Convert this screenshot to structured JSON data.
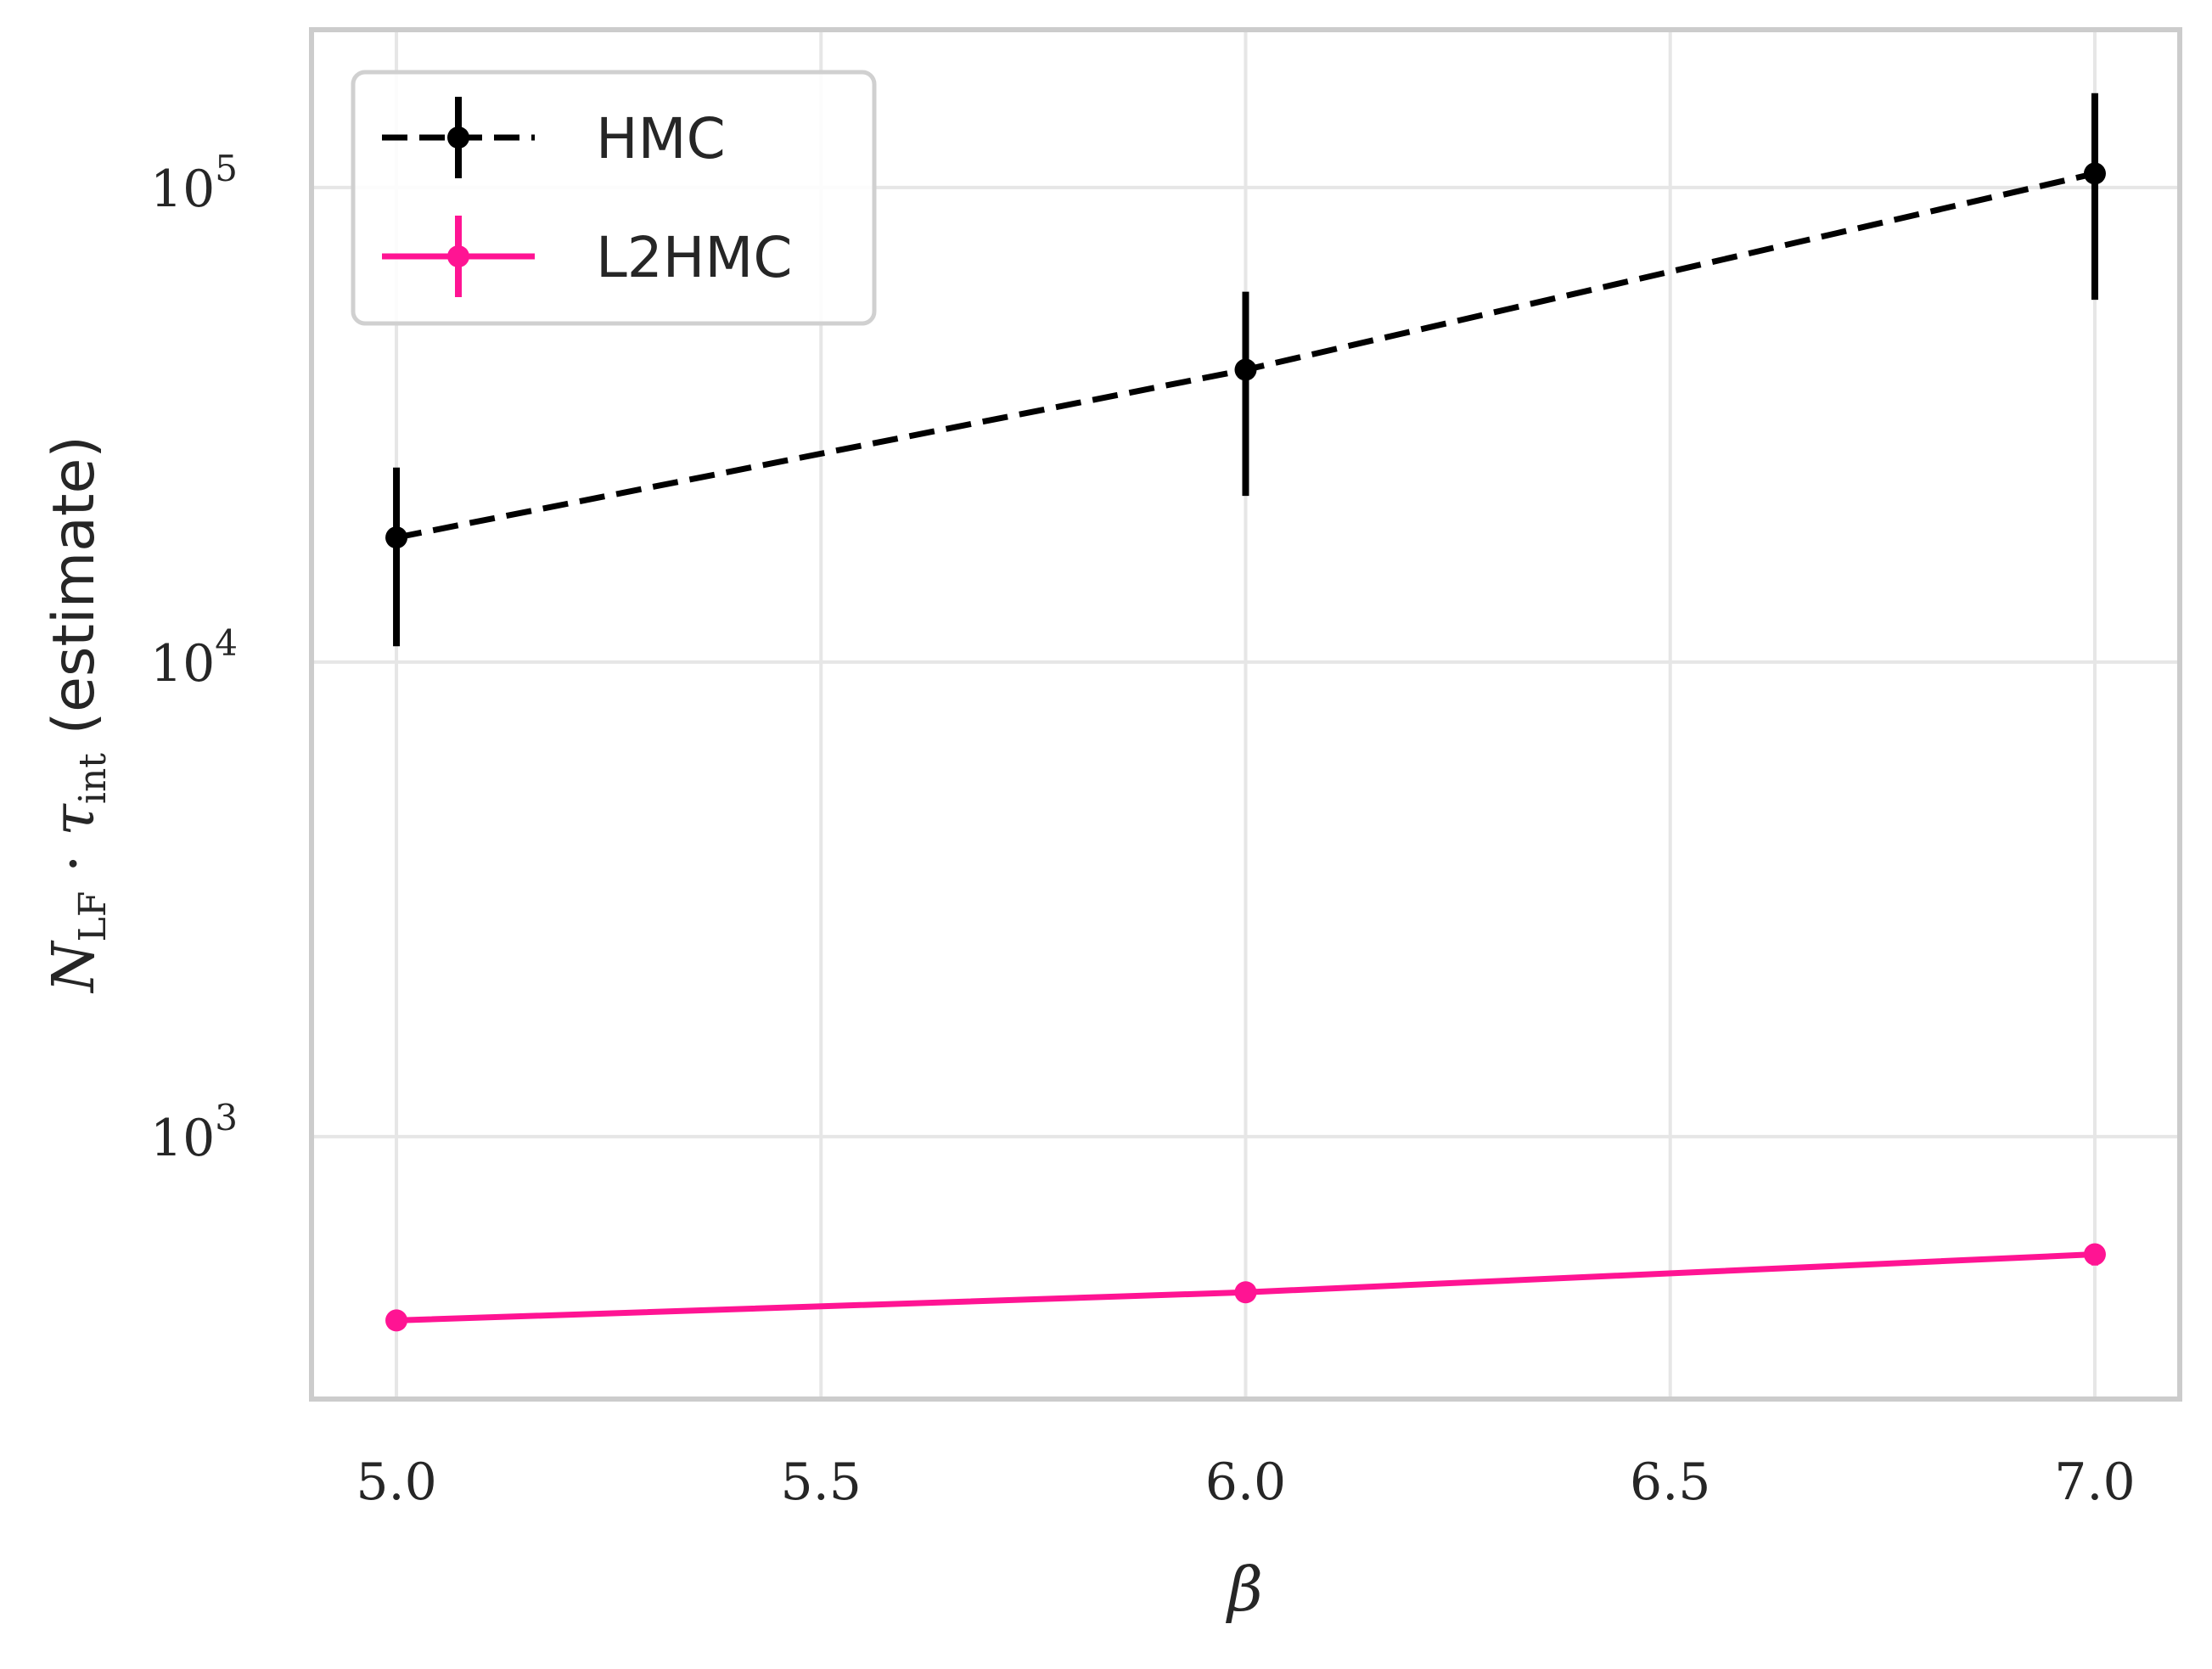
{
  "chart_data": {
    "type": "line",
    "title": "",
    "xlabel": "β",
    "ylabel": {
      "main": "N",
      "main_sub": "LF",
      "dot": " · ",
      "tau": "τ",
      "tau_sub": "int",
      "suffix": " (estimate)"
    },
    "xlim": [
      4.9,
      7.1
    ],
    "ylim": [
      280,
      215000
    ],
    "yscale": "log",
    "grid": true,
    "legend_position": "top-left",
    "x_ticks": [
      {
        "value": 5.0,
        "label": "5.0"
      },
      {
        "value": 5.5,
        "label": "5.5"
      },
      {
        "value": 6.0,
        "label": "6.0"
      },
      {
        "value": 6.5,
        "label": "6.5"
      },
      {
        "value": 7.0,
        "label": "7.0"
      }
    ],
    "y_ticks": [
      {
        "value": 1000,
        "base": "10",
        "exp": "3"
      },
      {
        "value": 10000,
        "base": "10",
        "exp": "4"
      },
      {
        "value": 100000,
        "base": "10",
        "exp": "5"
      }
    ],
    "series": [
      {
        "name": "HMC",
        "color": "#000000",
        "linestyle": "dashed",
        "x": [
          5.0,
          6.0,
          7.0
        ],
        "y": [
          18300,
          41300,
          107000
        ],
        "yerr_low": [
          10800,
          22400,
          58000
        ],
        "yerr_high": [
          25700,
          60300,
          158000
        ]
      },
      {
        "name": "L2HMC",
        "color": "#ff1493",
        "linestyle": "solid",
        "x": [
          5.0,
          6.0,
          7.0
        ],
        "y": [
          410,
          470,
          565
        ],
        "yerr_low": [
          390,
          450,
          535
        ],
        "yerr_high": [
          430,
          490,
          595
        ]
      }
    ]
  }
}
